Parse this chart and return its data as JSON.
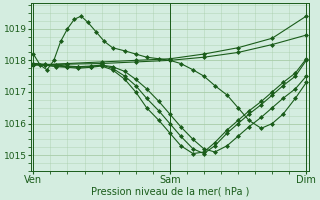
{
  "xlabel": "Pression niveau de la mer( hPa )",
  "background_color": "#d4ede0",
  "line_color": "#1a5c1a",
  "grid_color": "#a8cca8",
  "ylim": [
    1014.5,
    1019.8
  ],
  "yticks": [
    1015,
    1016,
    1017,
    1018,
    1019
  ],
  "xtick_labels": [
    "Ven",
    "Sam",
    "Dim"
  ],
  "xtick_positions": [
    0,
    1,
    2
  ],
  "lines": [
    {
      "x": [
        0.0,
        0.25,
        0.5,
        0.75,
        1.0,
        1.25,
        1.5,
        1.75,
        2.0
      ],
      "y": [
        1017.85,
        1017.9,
        1017.95,
        1018.0,
        1018.05,
        1018.2,
        1018.4,
        1018.7,
        1019.4
      ]
    },
    {
      "x": [
        0.0,
        0.25,
        0.5,
        0.75,
        1.0,
        1.25,
        1.5,
        1.75,
        2.0
      ],
      "y": [
        1017.85,
        1017.88,
        1017.9,
        1017.95,
        1018.0,
        1018.1,
        1018.25,
        1018.5,
        1018.8
      ]
    },
    {
      "x": [
        0.0,
        0.083,
        0.167,
        0.25,
        0.33,
        0.42,
        0.5,
        0.58,
        0.67,
        0.75,
        0.83,
        0.92,
        1.0,
        1.08,
        1.17,
        1.25,
        1.33,
        1.42,
        1.5,
        1.58,
        1.67,
        1.75,
        1.83,
        1.92,
        2.0
      ],
      "y": [
        1017.9,
        1017.85,
        1017.82,
        1017.8,
        1017.78,
        1017.8,
        1017.85,
        1017.75,
        1017.5,
        1017.2,
        1016.8,
        1016.4,
        1016.0,
        1015.6,
        1015.2,
        1015.05,
        1015.3,
        1015.7,
        1016.0,
        1016.3,
        1016.6,
        1016.9,
        1017.2,
        1017.5,
        1018.0
      ]
    },
    {
      "x": [
        0.0,
        0.083,
        0.167,
        0.25,
        0.33,
        0.42,
        0.5,
        0.58,
        0.67,
        0.75,
        0.83,
        0.92,
        1.0,
        1.08,
        1.17,
        1.25,
        1.33,
        1.42,
        1.5,
        1.58,
        1.67,
        1.75,
        1.83,
        1.92,
        2.0
      ],
      "y": [
        1017.9,
        1017.85,
        1017.8,
        1017.78,
        1017.75,
        1017.78,
        1017.82,
        1017.7,
        1017.4,
        1017.0,
        1016.5,
        1016.1,
        1015.7,
        1015.3,
        1015.05,
        1015.1,
        1015.4,
        1015.8,
        1016.1,
        1016.4,
        1016.7,
        1017.0,
        1017.3,
        1017.6,
        1018.05
      ]
    },
    {
      "x": [
        0.0,
        0.05,
        0.1,
        0.15,
        0.2,
        0.25,
        0.3,
        0.35,
        0.4,
        0.46,
        0.52,
        0.58,
        0.67,
        0.75,
        0.83,
        0.92,
        1.0,
        1.08,
        1.17,
        1.25,
        1.33,
        1.42,
        1.5,
        1.58,
        1.67,
        1.75,
        1.83,
        1.92,
        2.0
      ],
      "y": [
        1018.2,
        1017.85,
        1017.7,
        1018.0,
        1018.6,
        1019.0,
        1019.3,
        1019.4,
        1019.2,
        1018.9,
        1018.6,
        1018.4,
        1018.3,
        1018.2,
        1018.1,
        1018.05,
        1018.0,
        1017.9,
        1017.7,
        1017.5,
        1017.2,
        1016.9,
        1016.5,
        1016.1,
        1015.85,
        1016.0,
        1016.3,
        1016.8,
        1017.3
      ]
    },
    {
      "x": [
        0.0,
        0.083,
        0.167,
        0.25,
        0.33,
        0.42,
        0.5,
        0.58,
        0.67,
        0.75,
        0.83,
        0.92,
        1.0,
        1.08,
        1.17,
        1.25,
        1.33,
        1.42,
        1.5,
        1.58,
        1.67,
        1.75,
        1.83,
        1.92,
        2.0
      ],
      "y": [
        1017.9,
        1017.88,
        1017.85,
        1017.82,
        1017.8,
        1017.82,
        1017.85,
        1017.8,
        1017.65,
        1017.4,
        1017.1,
        1016.7,
        1016.3,
        1015.9,
        1015.5,
        1015.2,
        1015.1,
        1015.3,
        1015.6,
        1015.9,
        1016.2,
        1016.5,
        1016.8,
        1017.1,
        1017.5
      ]
    }
  ]
}
